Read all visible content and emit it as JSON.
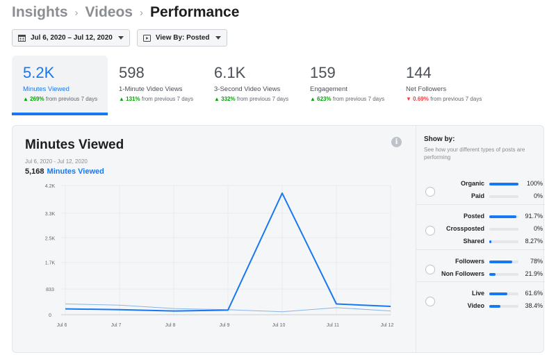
{
  "breadcrumb": [
    "Insights",
    "Videos",
    "Performance"
  ],
  "filters": {
    "date_range": "Jul 6, 2020 – Jul 12, 2020",
    "view_by": "View By: Posted"
  },
  "metrics": [
    {
      "value": "5.2K",
      "label": "Minutes Viewed",
      "change": "269%",
      "direction": "up",
      "suffix": "from previous 7 days"
    },
    {
      "value": "598",
      "label": "1-Minute Video Views",
      "change": "131%",
      "direction": "up",
      "suffix": "from previous 7 days"
    },
    {
      "value": "6.1K",
      "label": "3-Second Video Views",
      "change": "332%",
      "direction": "up",
      "suffix": "from previous 7 days"
    },
    {
      "value": "159",
      "label": "Engagement",
      "change": "623%",
      "direction": "up",
      "suffix": "from previous 7 days"
    },
    {
      "value": "144",
      "label": "Net Followers",
      "change": "0.69%",
      "direction": "down",
      "suffix": "from previous 7 days"
    }
  ],
  "panel": {
    "title": "Minutes Viewed",
    "info_icon": "info-icon",
    "date_range": "Jul 6, 2020 - Jul 12, 2020",
    "total_value": "5,168",
    "total_label": "Minutes Viewed"
  },
  "colors": {
    "accent": "#1877f2",
    "comparison_line": "#8ab4e8",
    "up": "#00a400",
    "down": "#fa383e"
  },
  "chart_data": {
    "type": "line",
    "title": "Minutes Viewed",
    "categories": [
      "Jul 6",
      "Jul 7",
      "Jul 8",
      "Jul 9",
      "Jul 10",
      "Jul 11",
      "Jul 12"
    ],
    "y_ticks": [
      "0",
      "833",
      "1.7K",
      "2.5K",
      "3.3K",
      "4.2K"
    ],
    "y_tick_values": [
      0,
      833,
      1700,
      2500,
      3300,
      4200
    ],
    "ylim": [
      0,
      4200
    ],
    "grid": true,
    "series": [
      {
        "values": [
          190,
          165,
          120,
          150,
          3950,
          350,
          270
        ]
      },
      {
        "values": [
          350,
          310,
          200,
          165,
          95,
          230,
          120
        ]
      }
    ]
  },
  "show_by": {
    "title": "Show by:",
    "description": "See how your different types of posts are performing",
    "groups": [
      {
        "rows": [
          {
            "label": "Organic",
            "value": "100%",
            "pct": 100
          },
          {
            "label": "Paid",
            "value": "0%",
            "pct": 0
          }
        ]
      },
      {
        "rows": [
          {
            "label": "Posted",
            "value": "91.7%",
            "pct": 91.7
          },
          {
            "label": "Crossposted",
            "value": "0%",
            "pct": 0
          },
          {
            "label": "Shared",
            "value": "8.27%",
            "pct": 8.27
          }
        ]
      },
      {
        "rows": [
          {
            "label": "Followers",
            "value": "78%",
            "pct": 78
          },
          {
            "label": "Non Followers",
            "value": "21.9%",
            "pct": 21.9
          }
        ]
      },
      {
        "rows": [
          {
            "label": "Live",
            "value": "61.6%",
            "pct": 61.6
          },
          {
            "label": "Video",
            "value": "38.4%",
            "pct": 38.4
          }
        ]
      }
    ]
  }
}
